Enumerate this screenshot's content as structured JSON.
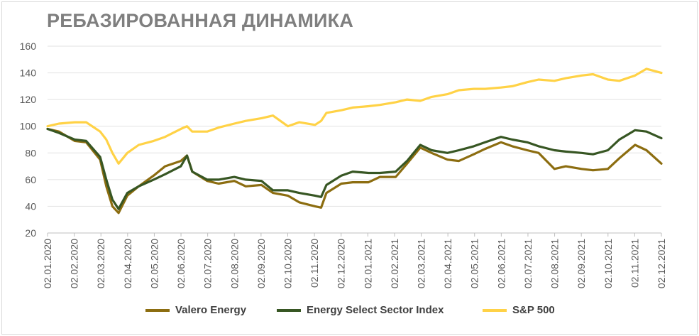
{
  "chart_data": {
    "type": "line",
    "title": "РЕБАЗИРОВАННАЯ ДИНАМИКА",
    "xlabel": "",
    "ylabel": "",
    "ylim": [
      20,
      160
    ],
    "yticks": [
      20,
      40,
      60,
      80,
      100,
      120,
      140,
      160
    ],
    "grid": "horizontal",
    "legend_position": "bottom",
    "x_tick_labels": [
      "02.01.2020",
      "02.02.2020",
      "02.03.2020",
      "02.04.2020",
      "02.05.2020",
      "02.06.2020",
      "02.07.2020",
      "02.08.2020",
      "02.09.2020",
      "02.10.2020",
      "02.11.2020",
      "02.12.2020",
      "02.01.2021",
      "02.02.2021",
      "02.03.2021",
      "02.04.2021",
      "02.05.2021",
      "02.06.2021",
      "02.07.2021",
      "02.08.2021",
      "02.09.2021",
      "02.10.2021",
      "02.11.2021",
      "02.12.2021"
    ],
    "x": [
      "2020-01-02",
      "2020-01-15",
      "2020-02-02",
      "2020-02-15",
      "2020-03-02",
      "2020-03-09",
      "2020-03-16",
      "2020-03-23",
      "2020-04-02",
      "2020-04-15",
      "2020-05-02",
      "2020-05-15",
      "2020-06-02",
      "2020-06-09",
      "2020-06-15",
      "2020-07-02",
      "2020-07-15",
      "2020-08-02",
      "2020-08-15",
      "2020-09-02",
      "2020-09-15",
      "2020-10-02",
      "2020-10-15",
      "2020-11-02",
      "2020-11-09",
      "2020-11-15",
      "2020-12-02",
      "2020-12-15",
      "2021-01-02",
      "2021-01-15",
      "2021-02-02",
      "2021-02-15",
      "2021-03-02",
      "2021-03-15",
      "2021-04-02",
      "2021-04-15",
      "2021-05-02",
      "2021-05-15",
      "2021-06-02",
      "2021-06-15",
      "2021-07-02",
      "2021-07-15",
      "2021-08-02",
      "2021-08-15",
      "2021-09-02",
      "2021-09-15",
      "2021-10-02",
      "2021-10-15",
      "2021-11-02",
      "2021-11-15",
      "2021-12-02"
    ],
    "series": [
      {
        "name": "Valero Energy",
        "color": "#8c6d10",
        "values": [
          98,
          96,
          89,
          88,
          75,
          55,
          40,
          35,
          48,
          55,
          63,
          70,
          74,
          78,
          66,
          59,
          57,
          59,
          55,
          56,
          50,
          48,
          43,
          40,
          39,
          50,
          57,
          58,
          58,
          62,
          62,
          72,
          84,
          80,
          75,
          74,
          79,
          83,
          88,
          85,
          82,
          80,
          68,
          70,
          68,
          67,
          68,
          76,
          86,
          82,
          72
        ]
      },
      {
        "name": "Energy Select Sector Index",
        "color": "#375623",
        "values": [
          98,
          95,
          90,
          89,
          77,
          60,
          45,
          38,
          50,
          55,
          60,
          64,
          70,
          78,
          66,
          60,
          60,
          62,
          60,
          59,
          52,
          52,
          50,
          48,
          47,
          56,
          63,
          66,
          65,
          65,
          66,
          74,
          86,
          82,
          80,
          82,
          85,
          88,
          92,
          90,
          88,
          85,
          82,
          81,
          80,
          79,
          82,
          90,
          97,
          96,
          91
        ]
      },
      {
        "name": "S&P 500",
        "color": "#ffd246",
        "values": [
          100,
          102,
          103,
          103,
          96,
          90,
          80,
          72,
          80,
          86,
          89,
          92,
          98,
          100,
          96,
          96,
          99,
          102,
          104,
          106,
          108,
          100,
          103,
          101,
          104,
          110,
          112,
          114,
          115,
          116,
          118,
          120,
          119,
          122,
          124,
          127,
          128,
          128,
          129,
          130,
          133,
          135,
          134,
          136,
          138,
          139,
          135,
          134,
          138,
          143,
          140
        ]
      }
    ]
  }
}
